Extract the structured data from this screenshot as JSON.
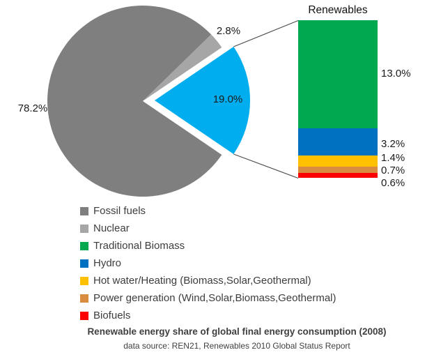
{
  "chart_data": {
    "type": "pie",
    "title": "Renewable energy share of global final energy consumption (2008)",
    "subtitle": "data source: REN21, Renewables 2010 Global Status Report",
    "pie": {
      "slices": [
        {
          "label": "Renewables",
          "value": 19.0,
          "display": "19.0%",
          "color": "#00AEEF",
          "exploded": true
        },
        {
          "label": "Nuclear",
          "value": 2.8,
          "display": "2.8%",
          "color": "#A6A6A6",
          "exploded": false
        },
        {
          "label": "Fossil fuels",
          "value": 78.2,
          "display": "78.2%",
          "color": "#7F7F7F",
          "exploded": false
        }
      ]
    },
    "bar": {
      "title": "Renewables",
      "total": 19.0,
      "segments": [
        {
          "label": "Traditional Biomass",
          "value": 13.0,
          "display": "13.0%",
          "color": "#00A84F"
        },
        {
          "label": "Hydro",
          "value": 3.2,
          "display": "3.2%",
          "color": "#0070C0"
        },
        {
          "label": "Hot water/Heating (Biomass,Solar,Geothermal)",
          "value": 1.4,
          "display": "1.4%",
          "color": "#FFC000"
        },
        {
          "label": "Power generation (Wind,Solar,Biomass,Geothermal)",
          "value": 0.7,
          "display": "0.7%",
          "color": "#D98C3F"
        },
        {
          "label": "Biofuels",
          "value": 0.6,
          "display": "0.6%",
          "color": "#FF0000"
        }
      ]
    },
    "legend": [
      {
        "label": "Fossil fuels",
        "color": "#7F7F7F"
      },
      {
        "label": "Nuclear",
        "color": "#A6A6A6"
      },
      {
        "label": "Traditional Biomass",
        "color": "#00A84F"
      },
      {
        "label": "Hydro",
        "color": "#0070C0"
      },
      {
        "label": "Hot water/Heating (Biomass,Solar,Geothermal)",
        "color": "#FFC000"
      },
      {
        "label": "Power generation (Wind,Solar,Biomass,Geothermal)",
        "color": "#D98C3F"
      },
      {
        "label": "Biofuels",
        "color": "#FF0000"
      }
    ],
    "connector_color": "#4d4d4d"
  }
}
